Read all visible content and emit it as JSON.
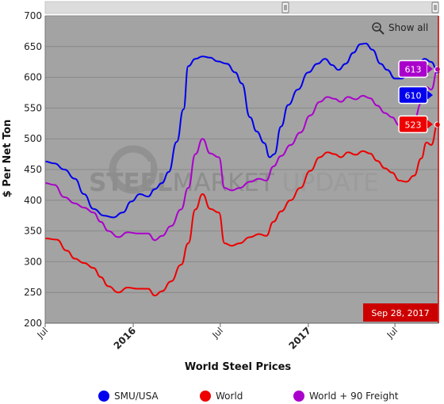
{
  "toolbar": {
    "show_all_label": "Show all",
    "zoom_icon": "magnifier-zoom-out-icon"
  },
  "watermark": {
    "text_bold": "STEEL",
    "text_mid": "MARKET",
    "text_light": " UPDATE"
  },
  "chart_data": {
    "type": "line",
    "title": "",
    "xlabel": "World Steel Prices",
    "ylabel": "$ Per Net Ton",
    "ylim": [
      200,
      700
    ],
    "y_ticks": [
      200,
      250,
      300,
      350,
      400,
      450,
      500,
      550,
      600,
      650,
      700
    ],
    "xlim": [
      "2015-07-01",
      "2017-09-30"
    ],
    "x_ticks": [
      {
        "label": "Jul",
        "date": "2015-07-01",
        "bold": false
      },
      {
        "label": "2016",
        "date": "2016-01-01",
        "bold": true
      },
      {
        "label": "Jul",
        "date": "2016-07-01",
        "bold": false
      },
      {
        "label": "2017",
        "date": "2017-01-01",
        "bold": true
      },
      {
        "label": "Jul",
        "date": "2017-07-01",
        "bold": false
      }
    ],
    "grid": true,
    "legend_position": "bottom",
    "series": [
      {
        "name": "SMU/USA",
        "color": "#0000ee",
        "last_value": 610,
        "points": [
          [
            "2015-07-01",
            463
          ],
          [
            "2015-07-20",
            460
          ],
          [
            "2015-08-10",
            450
          ],
          [
            "2015-09-01",
            435
          ],
          [
            "2015-09-20",
            410
          ],
          [
            "2015-10-10",
            386
          ],
          [
            "2015-11-01",
            375
          ],
          [
            "2015-11-20",
            372
          ],
          [
            "2015-12-10",
            380
          ],
          [
            "2015-12-28",
            398
          ],
          [
            "2016-01-15",
            410
          ],
          [
            "2016-02-01",
            406
          ],
          [
            "2016-02-15",
            418
          ],
          [
            "2016-03-01",
            428
          ],
          [
            "2016-03-15",
            446
          ],
          [
            "2016-04-01",
            495
          ],
          [
            "2016-04-15",
            548
          ],
          [
            "2016-04-25",
            618
          ],
          [
            "2016-05-10",
            630
          ],
          [
            "2016-05-25",
            634
          ],
          [
            "2016-06-10",
            632
          ],
          [
            "2016-06-25",
            626
          ],
          [
            "2016-07-15",
            622
          ],
          [
            "2016-08-01",
            608
          ],
          [
            "2016-08-15",
            590
          ],
          [
            "2016-09-01",
            535
          ],
          [
            "2016-09-15",
            512
          ],
          [
            "2016-10-01",
            493
          ],
          [
            "2016-10-12",
            470
          ],
          [
            "2016-10-22",
            475
          ],
          [
            "2016-11-05",
            520
          ],
          [
            "2016-11-20",
            555
          ],
          [
            "2016-12-10",
            580
          ],
          [
            "2017-01-01",
            608
          ],
          [
            "2017-01-20",
            622
          ],
          [
            "2017-02-05",
            630
          ],
          [
            "2017-02-20",
            620
          ],
          [
            "2017-03-05",
            612
          ],
          [
            "2017-03-20",
            622
          ],
          [
            "2017-04-05",
            640
          ],
          [
            "2017-04-20",
            654
          ],
          [
            "2017-05-01",
            655
          ],
          [
            "2017-05-15",
            645
          ],
          [
            "2017-06-01",
            622
          ],
          [
            "2017-06-15",
            612
          ],
          [
            "2017-07-01",
            598
          ],
          [
            "2017-07-15",
            598
          ],
          [
            "2017-08-01",
            612
          ],
          [
            "2017-08-15",
            612
          ],
          [
            "2017-09-01",
            630
          ],
          [
            "2017-09-15",
            625
          ],
          [
            "2017-09-28",
            610
          ]
        ]
      },
      {
        "name": "World",
        "color": "#ee0000",
        "last_value": 523,
        "points": [
          [
            "2015-07-01",
            338
          ],
          [
            "2015-07-25",
            336
          ],
          [
            "2015-08-15",
            318
          ],
          [
            "2015-09-01",
            305
          ],
          [
            "2015-09-20",
            298
          ],
          [
            "2015-10-10",
            290
          ],
          [
            "2015-10-25",
            275
          ],
          [
            "2015-11-10",
            260
          ],
          [
            "2015-12-01",
            250
          ],
          [
            "2015-12-20",
            258
          ],
          [
            "2016-01-10",
            256
          ],
          [
            "2016-02-01",
            256
          ],
          [
            "2016-02-15",
            245
          ],
          [
            "2016-03-01",
            252
          ],
          [
            "2016-03-20",
            268
          ],
          [
            "2016-04-10",
            295
          ],
          [
            "2016-04-25",
            330
          ],
          [
            "2016-05-10",
            385
          ],
          [
            "2016-05-25",
            410
          ],
          [
            "2016-06-10",
            386
          ],
          [
            "2016-06-28",
            380
          ],
          [
            "2016-07-10",
            330
          ],
          [
            "2016-07-25",
            326
          ],
          [
            "2016-08-10",
            330
          ],
          [
            "2016-09-01",
            340
          ],
          [
            "2016-09-20",
            345
          ],
          [
            "2016-10-05",
            342
          ],
          [
            "2016-10-20",
            365
          ],
          [
            "2016-11-05",
            382
          ],
          [
            "2016-11-25",
            400
          ],
          [
            "2016-12-15",
            420
          ],
          [
            "2017-01-05",
            448
          ],
          [
            "2017-01-25",
            470
          ],
          [
            "2017-02-10",
            478
          ],
          [
            "2017-02-25",
            475
          ],
          [
            "2017-03-10",
            470
          ],
          [
            "2017-03-25",
            478
          ],
          [
            "2017-04-10",
            474
          ],
          [
            "2017-04-25",
            480
          ],
          [
            "2017-05-10",
            476
          ],
          [
            "2017-05-25",
            464
          ],
          [
            "2017-06-10",
            452
          ],
          [
            "2017-06-25",
            445
          ],
          [
            "2017-07-10",
            432
          ],
          [
            "2017-07-25",
            430
          ],
          [
            "2017-08-10",
            440
          ],
          [
            "2017-08-25",
            468
          ],
          [
            "2017-09-05",
            494
          ],
          [
            "2017-09-15",
            490
          ],
          [
            "2017-09-28",
            523
          ]
        ]
      },
      {
        "name": "World + 90 Freight",
        "color": "#aa00cc",
        "last_value": 613,
        "points": [
          [
            "2015-07-01",
            428
          ],
          [
            "2015-07-20",
            425
          ],
          [
            "2015-08-10",
            405
          ],
          [
            "2015-09-01",
            395
          ],
          [
            "2015-09-20",
            388
          ],
          [
            "2015-10-10",
            380
          ],
          [
            "2015-10-25",
            365
          ],
          [
            "2015-11-10",
            350
          ],
          [
            "2015-12-01",
            340
          ],
          [
            "2015-12-20",
            348
          ],
          [
            "2016-01-10",
            346
          ],
          [
            "2016-02-01",
            346
          ],
          [
            "2016-02-15",
            335
          ],
          [
            "2016-03-01",
            342
          ],
          [
            "2016-03-20",
            358
          ],
          [
            "2016-04-10",
            385
          ],
          [
            "2016-04-25",
            420
          ],
          [
            "2016-05-10",
            475
          ],
          [
            "2016-05-25",
            500
          ],
          [
            "2016-06-10",
            476
          ],
          [
            "2016-06-28",
            470
          ],
          [
            "2016-07-10",
            420
          ],
          [
            "2016-07-25",
            416
          ],
          [
            "2016-08-10",
            420
          ],
          [
            "2016-09-01",
            430
          ],
          [
            "2016-09-20",
            435
          ],
          [
            "2016-10-05",
            432
          ],
          [
            "2016-10-20",
            455
          ],
          [
            "2016-11-05",
            472
          ],
          [
            "2016-11-25",
            490
          ],
          [
            "2016-12-15",
            510
          ],
          [
            "2017-01-05",
            538
          ],
          [
            "2017-01-25",
            560
          ],
          [
            "2017-02-10",
            568
          ],
          [
            "2017-02-25",
            565
          ],
          [
            "2017-03-10",
            560
          ],
          [
            "2017-03-25",
            568
          ],
          [
            "2017-04-10",
            564
          ],
          [
            "2017-04-25",
            570
          ],
          [
            "2017-05-10",
            566
          ],
          [
            "2017-05-25",
            554
          ],
          [
            "2017-06-10",
            542
          ],
          [
            "2017-06-25",
            535
          ],
          [
            "2017-07-10",
            522
          ],
          [
            "2017-07-25",
            520
          ],
          [
            "2017-08-10",
            530
          ],
          [
            "2017-08-25",
            558
          ],
          [
            "2017-09-05",
            584
          ],
          [
            "2017-09-15",
            580
          ],
          [
            "2017-09-28",
            613
          ]
        ]
      }
    ],
    "crosshair_label": "Sep 28, 2017"
  }
}
